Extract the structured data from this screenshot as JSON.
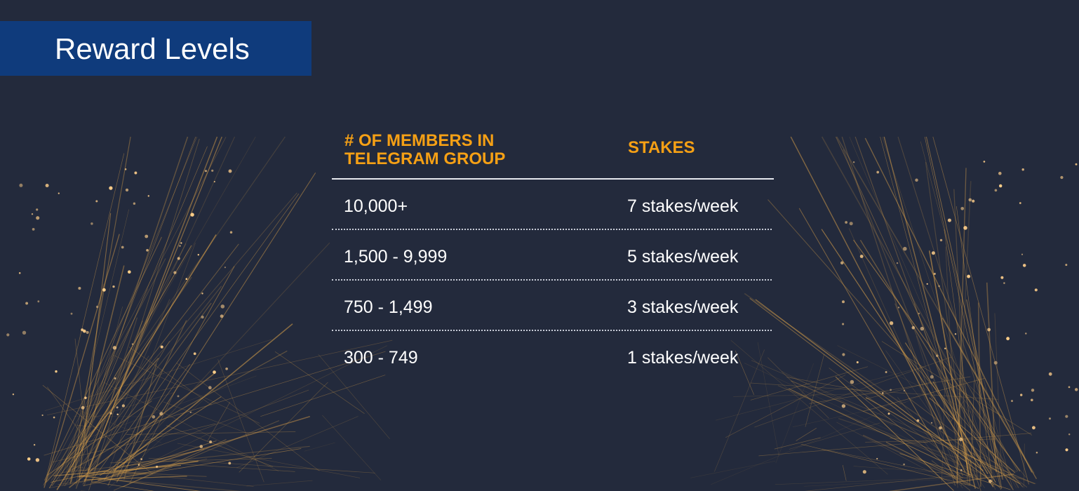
{
  "title": "Reward Levels",
  "table": {
    "headers": [
      "# OF MEMBERS IN TELEGRAM GROUP",
      "STAKES"
    ],
    "rows": [
      {
        "members": "10,000+",
        "stakes": "7 stakes/week"
      },
      {
        "members": "1,500 - 9,999",
        "stakes": "5 stakes/week"
      },
      {
        "members": "750 - 1,499",
        "stakes": "3 stakes/week"
      },
      {
        "members": "300 - 749",
        "stakes": "1 stakes/week"
      }
    ]
  },
  "colors": {
    "background": "#232a3c",
    "banner": "#0f3b7c",
    "accent": "#f5a015",
    "text": "#ffffff",
    "lines": "#d9a04a"
  }
}
